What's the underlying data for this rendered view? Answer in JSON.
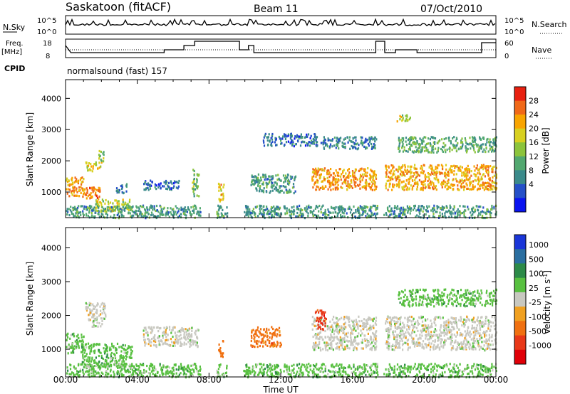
{
  "header": {
    "station": "Saskatoon (fitACF)",
    "beam": "Beam 11",
    "date": "07/Oct/2010"
  },
  "panels": {
    "nsky_label": "N.Sky",
    "nsky_ticks": [
      "10^5",
      "10^0"
    ],
    "nsearch_ticks": [
      "10^5",
      "10^0"
    ],
    "nsearch_label": "N.Search",
    "freq_label_1": "Freq.",
    "freq_label_2": "[MHz]",
    "freq_ticks": [
      "18",
      "8"
    ],
    "nave_ticks": [
      "60",
      "0"
    ],
    "nave_label": "Nave",
    "cpid_label": "CPID",
    "cpid_text": "normalsound (fast) 157"
  },
  "colors": {
    "power": [
      "#0a14f0",
      "#2550c8",
      "#3a8a8a",
      "#52a870",
      "#8cc43c",
      "#d8d020",
      "#f8a400",
      "#f06818",
      "#e82010"
    ],
    "velocity": [
      "#1a36d8",
      "#2a6ea0",
      "#2c8a48",
      "#58c040",
      "#c8c8c0",
      "#f0a020",
      "#f07010",
      "#e83818",
      "#e00008"
    ]
  },
  "chart_data": [
    {
      "type": "heatmap",
      "title": "",
      "ylabel": "Slant Range [km]",
      "xlabel": "",
      "xlim_hours": [
        0,
        24
      ],
      "ylim": [
        180,
        4600
      ],
      "yticks": [
        1000,
        2000,
        3000,
        4000
      ],
      "colorbar_label": "Power [dB]",
      "colorbar_ticks": [
        "4",
        "8",
        "12",
        "16",
        "20",
        "24",
        "28"
      ],
      "colorbar_range": [
        0,
        32
      ],
      "regions": [
        {
          "t0": 0.0,
          "t1": 1.0,
          "r0": 900,
          "r1": 1500,
          "v": 24
        },
        {
          "t0": 0.9,
          "t1": 1.9,
          "r0": 800,
          "r1": 1200,
          "v": 27
        },
        {
          "t0": 1.6,
          "t1": 3.6,
          "r0": 400,
          "r1": 800,
          "v": 18
        },
        {
          "t0": 1.1,
          "t1": 2.0,
          "r0": 1700,
          "r1": 2000,
          "v": 20
        },
        {
          "t0": 1.8,
          "t1": 2.1,
          "r0": 2000,
          "r1": 2400,
          "v": 14
        },
        {
          "t0": 2.8,
          "t1": 3.4,
          "r0": 1000,
          "r1": 1300,
          "v": 8
        },
        {
          "t0": 4.3,
          "t1": 6.3,
          "r0": 1100,
          "r1": 1400,
          "v": 6
        },
        {
          "t0": 7.0,
          "t1": 7.4,
          "r0": 900,
          "r1": 1750,
          "v": 14
        },
        {
          "t0": 8.5,
          "t1": 8.8,
          "r0": 700,
          "r1": 1350,
          "v": 22
        },
        {
          "t0": 10.3,
          "t1": 12.8,
          "r0": 1000,
          "r1": 1600,
          "v": 10
        },
        {
          "t0": 11.0,
          "t1": 14.0,
          "r0": 2500,
          "r1": 2900,
          "v": 6
        },
        {
          "t0": 13.7,
          "t1": 17.3,
          "r0": 1100,
          "r1": 1800,
          "v": 25
        },
        {
          "t0": 14.2,
          "t1": 17.3,
          "r0": 2400,
          "r1": 2800,
          "v": 8
        },
        {
          "t0": 17.8,
          "t1": 24.0,
          "r0": 1100,
          "r1": 1900,
          "v": 24
        },
        {
          "t0": 18.4,
          "t1": 19.2,
          "r0": 3300,
          "r1": 3500,
          "v": 18
        },
        {
          "t0": 18.5,
          "t1": 24.0,
          "r0": 2300,
          "r1": 2800,
          "v": 12
        },
        {
          "t0": 0.0,
          "t1": 24.0,
          "r0": 200,
          "r1": 600,
          "v": 10
        }
      ]
    },
    {
      "type": "heatmap",
      "title": "",
      "ylabel": "Slant Range [km]",
      "xlabel": "Time UT",
      "xlim_hours": [
        0,
        24
      ],
      "xticks": [
        "00:00",
        "04:00",
        "08:00",
        "12:00",
        "16:00",
        "20:00",
        "00:00"
      ],
      "ylim": [
        180,
        4600
      ],
      "yticks": [
        1000,
        2000,
        3000,
        4000
      ],
      "colorbar_label": "Velocity [m s-1]",
      "colorbar_ticks": [
        "1000",
        "500",
        "100",
        "25",
        "-25",
        "-100",
        "-500",
        "-1000"
      ],
      "regions": [
        {
          "t0": 0.0,
          "t1": 1.0,
          "r0": 900,
          "r1": 1500,
          "v": 3
        },
        {
          "t0": 0.9,
          "t1": 3.7,
          "r0": 500,
          "r1": 1200,
          "v": 3
        },
        {
          "t0": 1.1,
          "t1": 2.2,
          "r0": 1700,
          "r1": 2400,
          "v": 4
        },
        {
          "t0": 4.3,
          "t1": 7.4,
          "r0": 1100,
          "r1": 1700,
          "v": 4
        },
        {
          "t0": 8.5,
          "t1": 8.8,
          "r0": 800,
          "r1": 1300,
          "v": 6
        },
        {
          "t0": 10.3,
          "t1": 12.0,
          "r0": 1100,
          "r1": 1700,
          "v": 6
        },
        {
          "t0": 13.7,
          "t1": 17.3,
          "r0": 1000,
          "r1": 2000,
          "v": 4
        },
        {
          "t0": 13.9,
          "t1": 14.5,
          "r0": 1600,
          "r1": 2200,
          "v": 7
        },
        {
          "t0": 17.8,
          "t1": 24.0,
          "r0": 1000,
          "r1": 2000,
          "v": 4
        },
        {
          "t0": 18.5,
          "t1": 24.0,
          "r0": 2300,
          "r1": 2800,
          "v": 3
        },
        {
          "t0": 0.0,
          "t1": 24.0,
          "r0": 200,
          "r1": 600,
          "v": 3
        }
      ]
    }
  ]
}
